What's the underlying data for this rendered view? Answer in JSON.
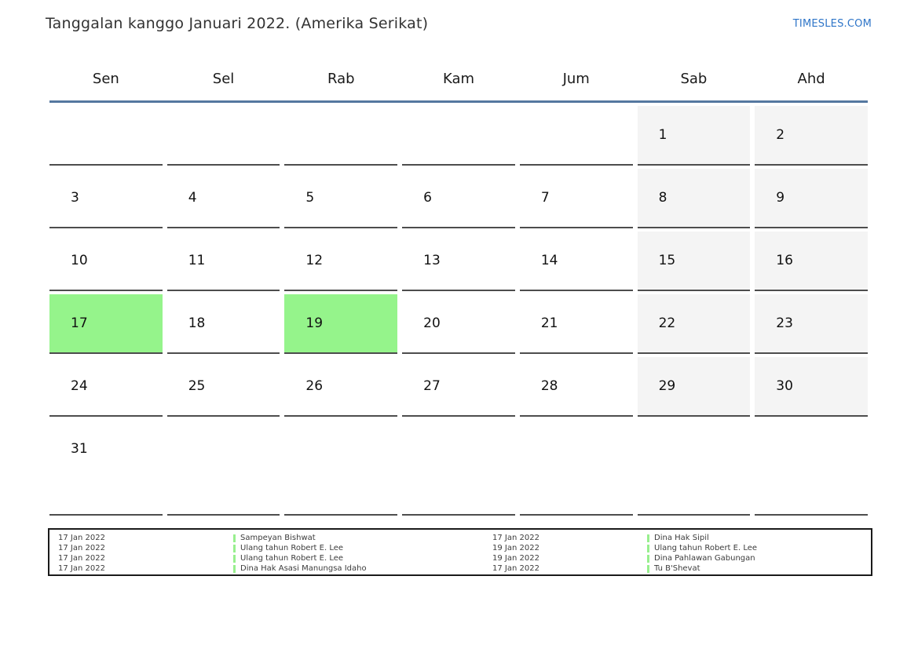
{
  "page": {
    "title": "Tanggalan kanggo Januari 2022. (Amerika Serikat)",
    "brand": "TIMESLES.COM"
  },
  "colors": {
    "highlight_green": "#95f48b",
    "weekend_bg": "#f4f4f4",
    "header_line_blue": "#5578a0",
    "legend_green": "#98ef8e",
    "brand_blue": "#2e75c8"
  },
  "calendar": {
    "day_headers": [
      "Sen",
      "Sel",
      "Rab",
      "Kam",
      "Jum",
      "Sab",
      "Ahd"
    ],
    "highlighted_days": [
      "17",
      "19"
    ],
    "weeks": [
      [
        {
          "d": ""
        },
        {
          "d": ""
        },
        {
          "d": ""
        },
        {
          "d": ""
        },
        {
          "d": ""
        },
        {
          "d": "1",
          "bg": "weekend"
        },
        {
          "d": "2",
          "bg": "weekend"
        }
      ],
      [
        {
          "d": "3"
        },
        {
          "d": "4"
        },
        {
          "d": "5"
        },
        {
          "d": "6"
        },
        {
          "d": "7"
        },
        {
          "d": "8",
          "bg": "weekend"
        },
        {
          "d": "9",
          "bg": "weekend"
        }
      ],
      [
        {
          "d": "10"
        },
        {
          "d": "11"
        },
        {
          "d": "12"
        },
        {
          "d": "13"
        },
        {
          "d": "14"
        },
        {
          "d": "15",
          "bg": "weekend"
        },
        {
          "d": "16",
          "bg": "weekend"
        }
      ],
      [
        {
          "d": "17",
          "bg": "highlight"
        },
        {
          "d": "18"
        },
        {
          "d": "19",
          "bg": "highlight"
        },
        {
          "d": "20"
        },
        {
          "d": "21"
        },
        {
          "d": "22",
          "bg": "weekend"
        },
        {
          "d": "23",
          "bg": "weekend"
        }
      ],
      [
        {
          "d": "24"
        },
        {
          "d": "25"
        },
        {
          "d": "26"
        },
        {
          "d": "27"
        },
        {
          "d": "28"
        },
        {
          "d": "29",
          "bg": "weekend"
        },
        {
          "d": "30",
          "bg": "weekend"
        }
      ],
      [
        {
          "d": "31"
        },
        {
          "d": ""
        },
        {
          "d": ""
        },
        {
          "d": ""
        },
        {
          "d": ""
        },
        {
          "d": ""
        },
        {
          "d": ""
        }
      ]
    ]
  },
  "legend": {
    "columns": [
      {
        "entries": [
          {
            "date": "17 Jan 2022",
            "name": "Sampeyan Bishwat"
          },
          {
            "date": "17 Jan 2022",
            "name": "Ulang tahun Robert E. Lee"
          },
          {
            "date": "17 Jan 2022",
            "name": "Ulang tahun Robert E. Lee"
          },
          {
            "date": "17 Jan 2022",
            "name": "Dina Hak Asasi Manungsa Idaho"
          }
        ]
      },
      {
        "entries": [
          {
            "date": "17 Jan 2022",
            "name": "Dina Hak Sipil"
          },
          {
            "date": "19 Jan 2022",
            "name": "Ulang tahun Robert E. Lee"
          },
          {
            "date": "19 Jan 2022",
            "name": "Dina Pahlawan Gabungan"
          },
          {
            "date": "17 Jan 2022",
            "name": "Tu B'Shevat"
          }
        ]
      }
    ]
  }
}
